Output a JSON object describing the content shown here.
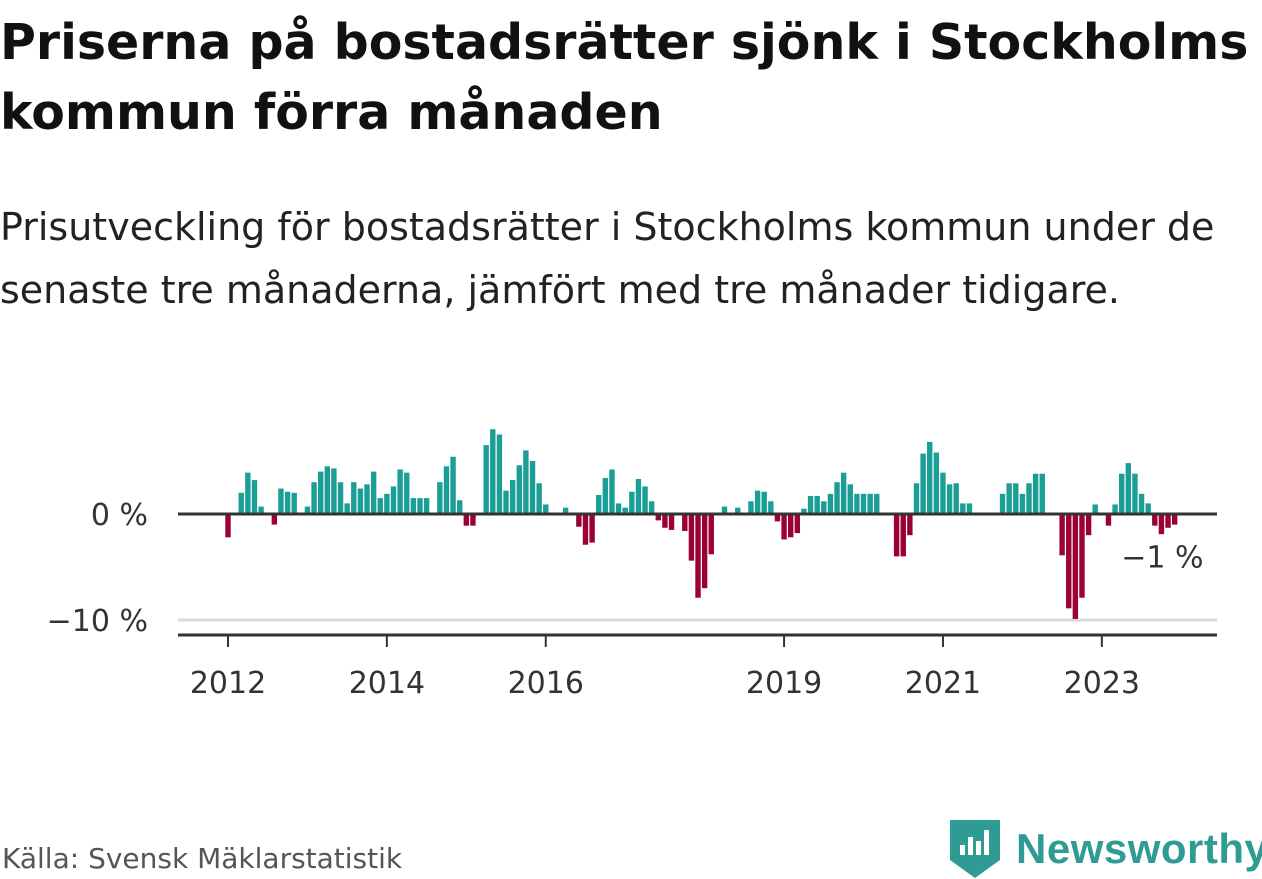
{
  "title": "Priserna på bostadsrätter sjönk i Stockholms kommun förra månaden",
  "subtitle": "Prisutveckling för bostadsrätter i Stockholms kommun under de senaste tre månaderna, jämfört med tre månader tidigare.",
  "source": "Källa: Svensk Mäklarstatistik",
  "brand": "Newsworthy",
  "colors": {
    "positive": "#1a9e96",
    "negative": "#9b0037",
    "axis": "#333333",
    "grid": "#d9d9d9",
    "brand": "#2e9c94"
  },
  "chart_data": {
    "type": "bar",
    "title": "Priserna på bostadsrätter sjönk i Stockholms kommun förra månaden",
    "ylabel": "",
    "xlabel": "",
    "unit": "%",
    "ylim": [
      -11,
      8
    ],
    "y_ticks": [
      {
        "value": 0,
        "label": "0 %"
      },
      {
        "value": -10,
        "label": "−10 %"
      }
    ],
    "x_ticks": [
      {
        "label": "2012",
        "index": 0
      },
      {
        "label": "2014",
        "index": 24
      },
      {
        "label": "2016",
        "index": 48
      },
      {
        "label": "2019",
        "index": 84
      },
      {
        "label": "2021",
        "index": 108
      },
      {
        "label": "2023",
        "index": 132
      }
    ],
    "start": "2011-11",
    "series": [
      {
        "name": "Prisutveckling (%)",
        "values": [
          -2.2,
          0,
          2.0,
          3.9,
          3.2,
          0.7,
          0,
          -1.0,
          2.4,
          2.1,
          2.0,
          0,
          0.7,
          3.0,
          4.0,
          4.5,
          4.3,
          3.0,
          1.0,
          3.0,
          2.4,
          2.8,
          4.0,
          1.5,
          1.9,
          2.6,
          4.2,
          3.9,
          1.5,
          1.5,
          1.5,
          0,
          3.0,
          4.5,
          5.4,
          1.3,
          -1.1,
          -1.1,
          0,
          6.5,
          8.0,
          7.5,
          2.2,
          3.2,
          4.6,
          6.0,
          5.0,
          2.9,
          0.9,
          0,
          0,
          0.6,
          0,
          -1.2,
          -2.9,
          -2.7,
          1.8,
          3.4,
          4.2,
          1.0,
          0.6,
          2.1,
          3.3,
          2.6,
          1.2,
          -0.6,
          -1.3,
          -1.5,
          0,
          -1.6,
          -4.4,
          -7.9,
          -7.0,
          -3.8,
          0,
          0.7,
          0,
          0.6,
          0,
          1.2,
          2.2,
          2.1,
          1.2,
          -0.7,
          -2.4,
          -2.2,
          -1.8,
          0.5,
          1.7,
          1.7,
          1.2,
          1.9,
          3.0,
          3.9,
          2.8,
          1.9,
          1.9,
          1.9,
          1.9,
          0,
          0,
          -4.0,
          -4.0,
          -2.0,
          2.9,
          5.7,
          6.8,
          5.8,
          3.9,
          2.8,
          2.9,
          1.0,
          1.0,
          0,
          0,
          0,
          0,
          1.9,
          2.9,
          2.9,
          1.9,
          2.9,
          3.8,
          3.8,
          0,
          0,
          -3.9,
          -8.9,
          -9.9,
          -7.9,
          -2.0,
          0.9,
          0,
          -1.1,
          0.9,
          3.8,
          4.8,
          3.8,
          1.9,
          1.0,
          -1.1,
          -1.9,
          -1.3,
          -1.0
        ]
      }
    ],
    "annotation": {
      "label": "−1 %",
      "index": 141
    }
  }
}
